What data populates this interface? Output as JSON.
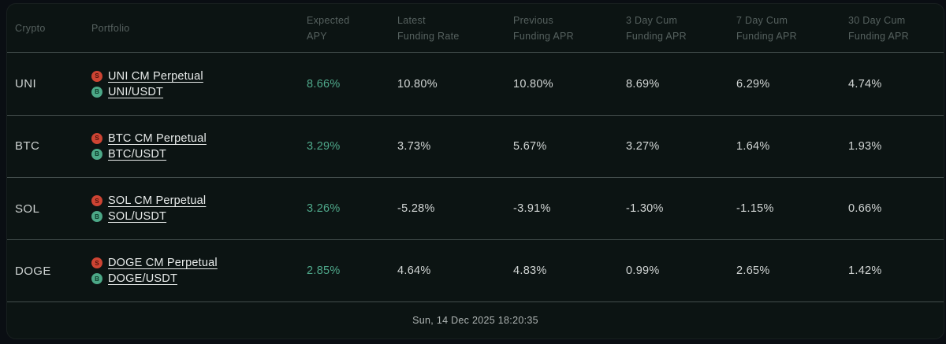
{
  "colors": {
    "card_background": "#0c1413",
    "page_background": "#0a0e13",
    "apy_green": "#4fa98b",
    "badge_short_red": "#cd4433",
    "badge_base_green": "#4ca887",
    "divider": "#434d4c"
  },
  "table": {
    "headers": [
      {
        "label": "Crypto"
      },
      {
        "label": "Portfolio"
      },
      {
        "line1": "Expected",
        "line2": "APY"
      },
      {
        "line1": "Latest",
        "line2": "Funding Rate"
      },
      {
        "line1": "Previous",
        "line2": "Funding APR"
      },
      {
        "line1": "3 Day Cum",
        "line2": "Funding APR"
      },
      {
        "line1": "7 Day Cum",
        "line2": "Funding APR"
      },
      {
        "line1": "30 Day Cum",
        "line2": "Funding APR"
      }
    ],
    "rows": [
      {
        "crypto": "UNI",
        "portfolios": [
          {
            "badge": "S",
            "label": "UNI CM Perpetual"
          },
          {
            "badge": "B",
            "label": "UNI/USDT"
          }
        ],
        "expected_apy": "8.66%",
        "latest_funding_rate": "10.80%",
        "previous_funding_apr": "10.80%",
        "cum_3d": "8.69%",
        "cum_7d": "6.29%",
        "cum_30d": "4.74%"
      },
      {
        "crypto": "BTC",
        "portfolios": [
          {
            "badge": "S",
            "label": "BTC CM Perpetual"
          },
          {
            "badge": "B",
            "label": "BTC/USDT"
          }
        ],
        "expected_apy": "3.29%",
        "latest_funding_rate": "3.73%",
        "previous_funding_apr": "5.67%",
        "cum_3d": "3.27%",
        "cum_7d": "1.64%",
        "cum_30d": "1.93%"
      },
      {
        "crypto": "SOL",
        "portfolios": [
          {
            "badge": "S",
            "label": "SOL CM Perpetual"
          },
          {
            "badge": "B",
            "label": "SOL/USDT"
          }
        ],
        "expected_apy": "3.26%",
        "latest_funding_rate": "-5.28%",
        "previous_funding_apr": "-3.91%",
        "cum_3d": "-1.30%",
        "cum_7d": "-1.15%",
        "cum_30d": "0.66%"
      },
      {
        "crypto": "DOGE",
        "portfolios": [
          {
            "badge": "S",
            "label": "DOGE CM Perpetual"
          },
          {
            "badge": "B",
            "label": "DOGE/USDT"
          }
        ],
        "expected_apy": "2.85%",
        "latest_funding_rate": "4.64%",
        "previous_funding_apr": "4.83%",
        "cum_3d": "0.99%",
        "cum_7d": "2.65%",
        "cum_30d": "1.42%"
      }
    ]
  },
  "footer": {
    "timestamp": "Sun, 14 Dec 2025 18:20:35"
  }
}
